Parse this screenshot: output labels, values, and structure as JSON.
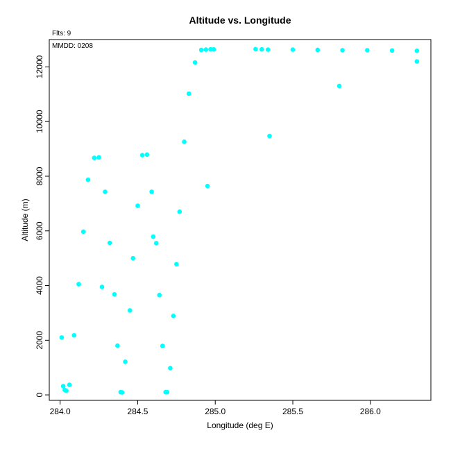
{
  "chart_data": {
    "type": "scatter",
    "title": "Altitude vs. Longitude",
    "xlabel": "Longitude (deg E)",
    "ylabel": "Altitude (m)",
    "annotations": {
      "fits": "Flts: 9",
      "mmdd": "MMDD: 0208"
    },
    "xlim": [
      283.93,
      286.39
    ],
    "ylim": [
      -200,
      13000
    ],
    "x_ticks": [
      284.0,
      284.5,
      285.0,
      285.5,
      286.0
    ],
    "x_tick_labels": [
      "284.0",
      "284.5",
      "285.0",
      "285.5",
      "286.0"
    ],
    "y_ticks": [
      0,
      2000,
      4000,
      6000,
      8000,
      10000,
      12000
    ],
    "y_tick_labels": [
      "0",
      "2000",
      "4000",
      "6000",
      "8000",
      "10000",
      "12000"
    ],
    "grid": false,
    "point_color": "#00ffff",
    "series": [
      {
        "x": [
          284.01,
          284.02,
          284.03,
          284.04,
          284.06,
          284.09,
          284.12,
          284.15,
          284.18,
          284.22,
          284.25,
          284.27,
          284.29,
          284.32,
          284.35,
          284.37,
          284.39,
          284.4,
          284.42,
          284.45,
          284.47,
          284.5,
          284.53,
          284.56,
          284.59,
          284.6,
          284.62,
          284.64,
          284.66,
          284.68,
          284.69,
          284.71,
          284.73,
          284.75,
          284.77,
          284.8,
          284.83,
          284.87,
          284.91,
          284.94,
          284.97,
          284.99,
          284.95,
          285.26,
          285.3,
          285.34,
          285.35,
          285.5,
          285.66,
          285.8,
          285.82,
          285.98,
          286.14,
          286.3,
          286.3
        ],
        "y": [
          2100,
          320,
          180,
          150,
          370,
          2180,
          4050,
          5970,
          7870,
          8670,
          8690,
          3950,
          7430,
          5560,
          3680,
          1800,
          100,
          90,
          1210,
          3090,
          5000,
          6920,
          8770,
          8790,
          7430,
          5790,
          5550,
          3650,
          1790,
          100,
          100,
          980,
          2890,
          4780,
          6700,
          9260,
          11020,
          12160,
          12620,
          12630,
          12640,
          12640,
          7640,
          12650,
          12640,
          12630,
          9470,
          12630,
          12620,
          11300,
          12610,
          12610,
          12600,
          12590,
          12200
        ]
      }
    ]
  }
}
